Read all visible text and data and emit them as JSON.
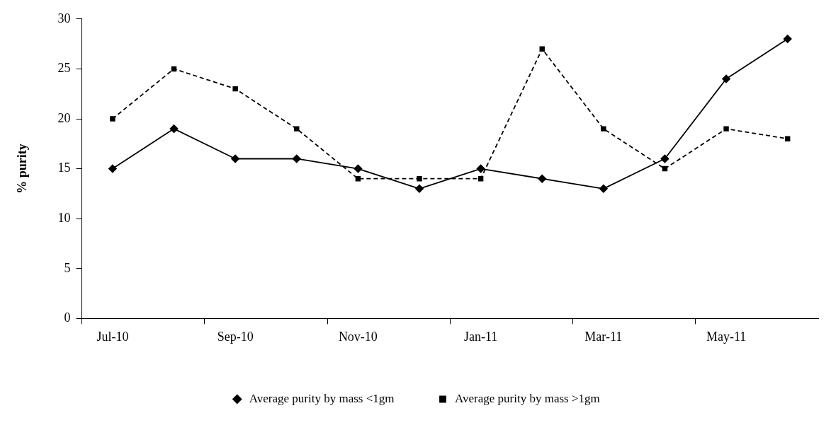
{
  "chart_data": {
    "type": "line",
    "ylabel": "% purity",
    "categories": [
      "Jul-10",
      null,
      "Sep-10",
      null,
      "Nov-10",
      null,
      "Jan-11",
      null,
      "Mar-11",
      null,
      "May-11",
      null
    ],
    "series": [
      {
        "name": "Average purity by mass <1gm",
        "color": "#000000",
        "marker": "diamond",
        "line_style": "solid",
        "values": [
          15,
          19,
          16,
          16,
          15,
          13,
          15,
          14,
          13,
          16,
          24,
          28
        ]
      },
      {
        "name": "Average purity by mass >1gm",
        "color": "#000000",
        "marker": "square",
        "line_style": "dashed",
        "values": [
          20,
          25,
          23,
          19,
          14,
          14,
          14,
          27,
          19,
          15,
          19,
          18
        ]
      }
    ],
    "ylim": [
      0,
      30
    ],
    "yticks": [
      0,
      5,
      10,
      15,
      20,
      25,
      30
    ],
    "grid": false,
    "legend": "bottom"
  }
}
